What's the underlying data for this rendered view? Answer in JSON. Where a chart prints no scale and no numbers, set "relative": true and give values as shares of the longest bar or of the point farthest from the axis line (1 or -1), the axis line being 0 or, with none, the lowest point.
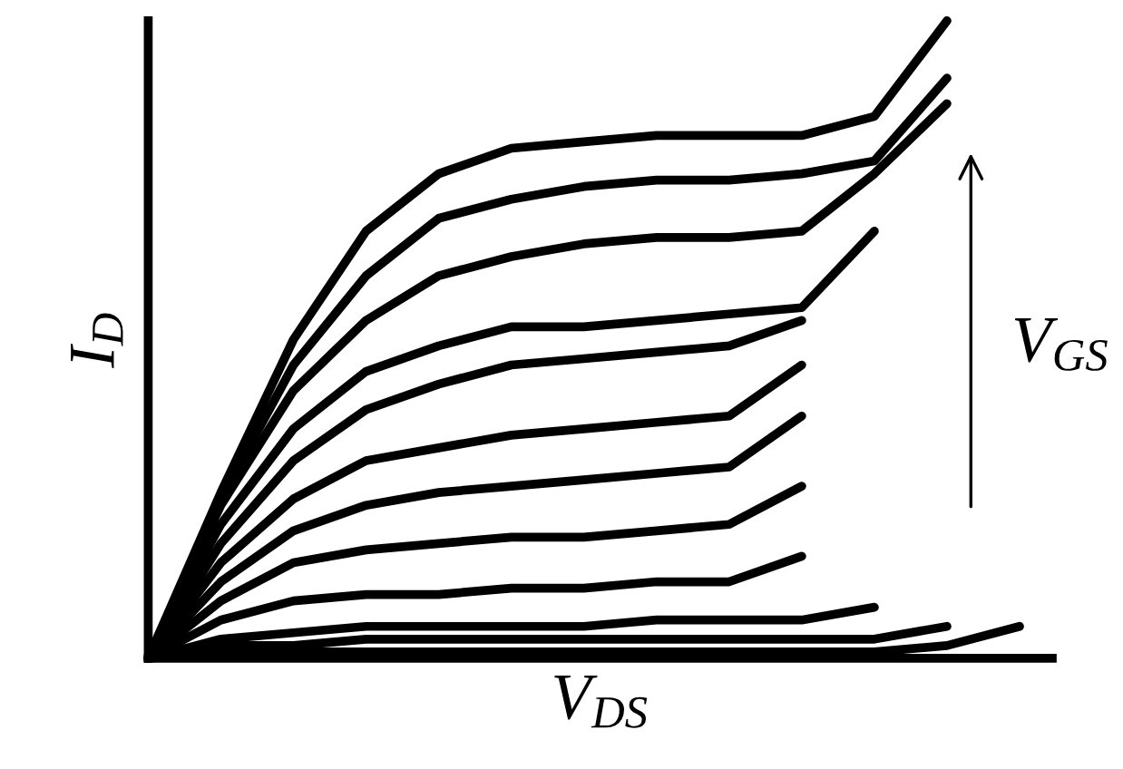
{
  "chart_data": {
    "type": "line",
    "relative": true,
    "xlabel": "V$_{DS}$",
    "ylabel": "I$_{D}$",
    "annotations": [
      "V$_{GS}$"
    ],
    "marker": "none",
    "line_style": "solid",
    "legend": false,
    "categories": [
      null,
      null,
      null,
      null,
      null,
      null,
      null,
      null,
      null,
      null,
      null,
      null,
      null
    ],
    "series": [
      {
        "color": "#000000",
        "values": [
          0,
          0.26,
          0.5,
          0.67,
          0.76,
          0.8,
          0.81,
          0.82,
          0.82,
          0.82,
          0.85,
          1.0,
          null
        ]
      },
      {
        "color": "#000000",
        "values": [
          0,
          0.25,
          0.46,
          0.6,
          0.69,
          0.72,
          0.74,
          0.75,
          0.75,
          0.76,
          0.78,
          0.91,
          null
        ]
      },
      {
        "color": "#000000",
        "values": [
          0,
          0.24,
          0.42,
          0.53,
          0.6,
          0.63,
          0.65,
          0.66,
          0.66,
          0.67,
          0.76,
          0.87,
          null
        ]
      },
      {
        "color": "#000000",
        "values": [
          0,
          0.21,
          0.36,
          0.45,
          0.49,
          0.52,
          0.52,
          0.53,
          0.54,
          0.55,
          0.67,
          null,
          null
        ]
      },
      {
        "color": "#000000",
        "values": [
          0,
          0.18,
          0.31,
          0.39,
          0.43,
          0.46,
          0.47,
          0.48,
          0.49,
          0.53,
          null,
          null,
          null
        ]
      },
      {
        "color": "#000000",
        "values": [
          0,
          0.15,
          0.25,
          0.31,
          0.33,
          0.35,
          0.36,
          0.37,
          0.38,
          0.46,
          null,
          null,
          null
        ]
      },
      {
        "color": "#000000",
        "values": [
          0,
          0.12,
          0.2,
          0.24,
          0.26,
          0.27,
          0.28,
          0.29,
          0.3,
          0.38,
          null,
          null,
          null
        ]
      },
      {
        "color": "#000000",
        "values": [
          0,
          0.09,
          0.15,
          0.17,
          0.18,
          0.19,
          0.19,
          0.2,
          0.21,
          0.27,
          null,
          null,
          null
        ]
      },
      {
        "color": "#000000",
        "values": [
          0,
          0.06,
          0.09,
          0.1,
          0.1,
          0.11,
          0.11,
          0.12,
          0.12,
          0.16,
          null,
          null,
          null
        ]
      },
      {
        "color": "#000000",
        "values": [
          0,
          0.03,
          0.04,
          0.05,
          0.05,
          0.05,
          0.05,
          0.06,
          0.06,
          0.06,
          0.08,
          null,
          null
        ]
      },
      {
        "color": "#000000",
        "values": [
          0,
          0.02,
          0.02,
          0.03,
          0.03,
          0.03,
          0.03,
          0.03,
          0.03,
          0.03,
          0.03,
          0.05,
          null
        ]
      },
      {
        "color": "#000000",
        "values": [
          0,
          0.01,
          0.01,
          0.01,
          0.01,
          0.01,
          0.01,
          0.01,
          0.01,
          0.01,
          0.01,
          0.02,
          0.05
        ]
      }
    ]
  }
}
